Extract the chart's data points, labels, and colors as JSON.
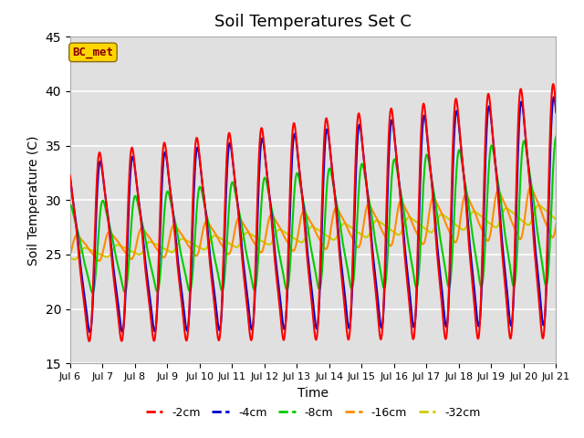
{
  "title": "Soil Temperatures Set C",
  "xlabel": "Time",
  "ylabel": "Soil Temperature (C)",
  "ylim": [
    15,
    45
  ],
  "xlim_days": [
    6,
    21
  ],
  "x_ticks": [
    6,
    7,
    8,
    9,
    10,
    11,
    12,
    13,
    14,
    15,
    16,
    17,
    18,
    19,
    20,
    21
  ],
  "x_tick_labels": [
    "Jul 6",
    "Jul 7",
    "Jul 8",
    "Jul 9",
    "Jul 10",
    "Jul 11",
    "Jul 12",
    "Jul 13",
    "Jul 14",
    "Jul 15",
    "Jul 16",
    "Jul 17",
    "Jul 18",
    "Jul 19",
    "Jul 20",
    "Jul 21"
  ],
  "legend_label": "BC_met",
  "legend_text_color": "#8B0000",
  "legend_box_color": "#FFD700",
  "legend_box_edge": "#8B6914",
  "series_colors": {
    "-2cm": "#FF0000",
    "-4cm": "#0000CC",
    "-8cm": "#00CC00",
    "-16cm": "#FF8C00",
    "-32cm": "#CCCC00"
  },
  "bg_color": "#E0E0E0",
  "fig_bg": "#FFFFFF",
  "line_width": 1.5,
  "n_points": 2000,
  "day_start": 6,
  "day_end": 21
}
